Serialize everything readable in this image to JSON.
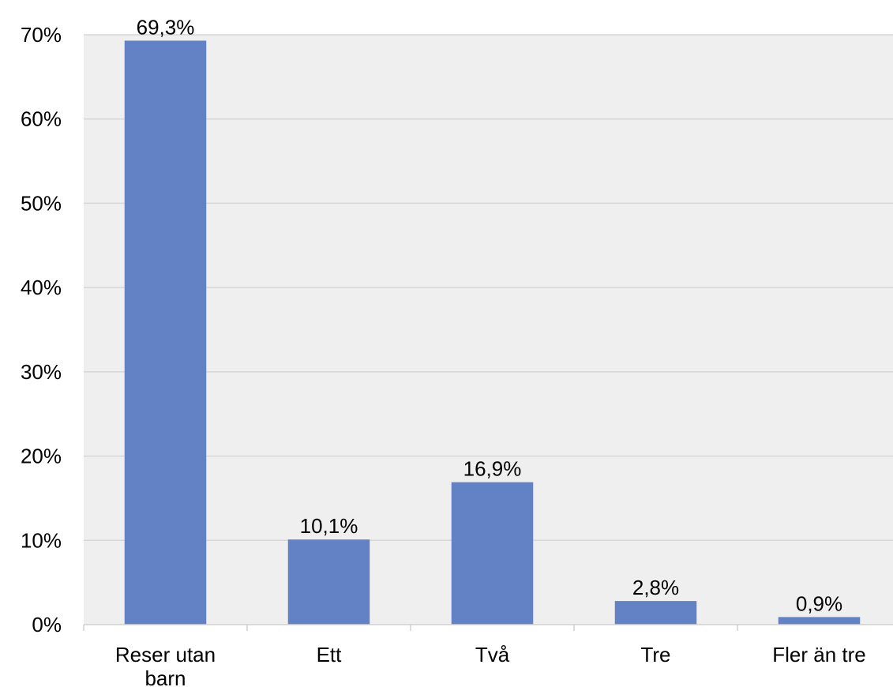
{
  "chart_data": {
    "type": "bar",
    "title": "",
    "xlabel": "",
    "ylabel": "",
    "categories": [
      [
        "Reser utan",
        "barn"
      ],
      [
        "Ett"
      ],
      [
        "Två"
      ],
      [
        "Tre"
      ],
      [
        "Fler än tre"
      ]
    ],
    "values": [
      69.3,
      10.1,
      16.9,
      2.8,
      0.9
    ],
    "data_labels": [
      "69,3%",
      "10,1%",
      "16,9%",
      "2,8%",
      "0,9%"
    ],
    "ylim": [
      0,
      70
    ],
    "yticks": [
      0,
      10,
      20,
      30,
      40,
      50,
      60,
      70
    ],
    "ytick_labels": [
      "0%",
      "10%",
      "20%",
      "30%",
      "40%",
      "50%",
      "60%",
      "70%"
    ],
    "grid": true,
    "legend": "none",
    "colors": {
      "bar": "#6282c5",
      "plot_background": "#efefef",
      "gridline": "#d6d6d6"
    }
  }
}
